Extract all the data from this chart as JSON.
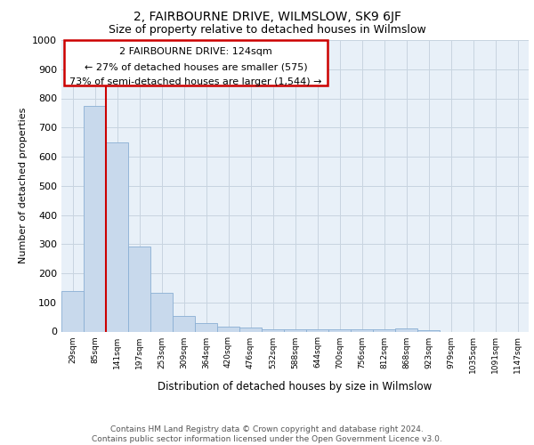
{
  "title": "2, FAIRBOURNE DRIVE, WILMSLOW, SK9 6JF",
  "subtitle": "Size of property relative to detached houses in Wilmslow",
  "xlabel": "Distribution of detached houses by size in Wilmslow",
  "ylabel": "Number of detached properties",
  "categories": [
    "29sqm",
    "85sqm",
    "141sqm",
    "197sqm",
    "253sqm",
    "309sqm",
    "364sqm",
    "420sqm",
    "476sqm",
    "532sqm",
    "588sqm",
    "644sqm",
    "700sqm",
    "756sqm",
    "812sqm",
    "868sqm",
    "923sqm",
    "979sqm",
    "1035sqm",
    "1091sqm",
    "1147sqm"
  ],
  "values": [
    140,
    775,
    650,
    293,
    133,
    53,
    28,
    18,
    15,
    8,
    7,
    8,
    8,
    7,
    7,
    12,
    5,
    0,
    0,
    0,
    0
  ],
  "bar_color": "#c8d9ec",
  "bar_edge_color": "#8aafd4",
  "grid_color": "#c8d4e0",
  "background_color": "#e8f0f8",
  "annotation_box_color": "#ffffff",
  "annotation_box_edge": "#cc0000",
  "red_line_color": "#cc0000",
  "annotation_text_line1": "2 FAIRBOURNE DRIVE: 124sqm",
  "annotation_text_line2": "← 27% of detached houses are smaller (575)",
  "annotation_text_line3": "73% of semi-detached houses are larger (1,544) →",
  "footer_line1": "Contains HM Land Registry data © Crown copyright and database right 2024.",
  "footer_line2": "Contains public sector information licensed under the Open Government Licence v3.0.",
  "ylim": [
    0,
    1000
  ],
  "yticks": [
    0,
    100,
    200,
    300,
    400,
    500,
    600,
    700,
    800,
    900,
    1000
  ],
  "title_fontsize": 10,
  "subtitle_fontsize": 9
}
